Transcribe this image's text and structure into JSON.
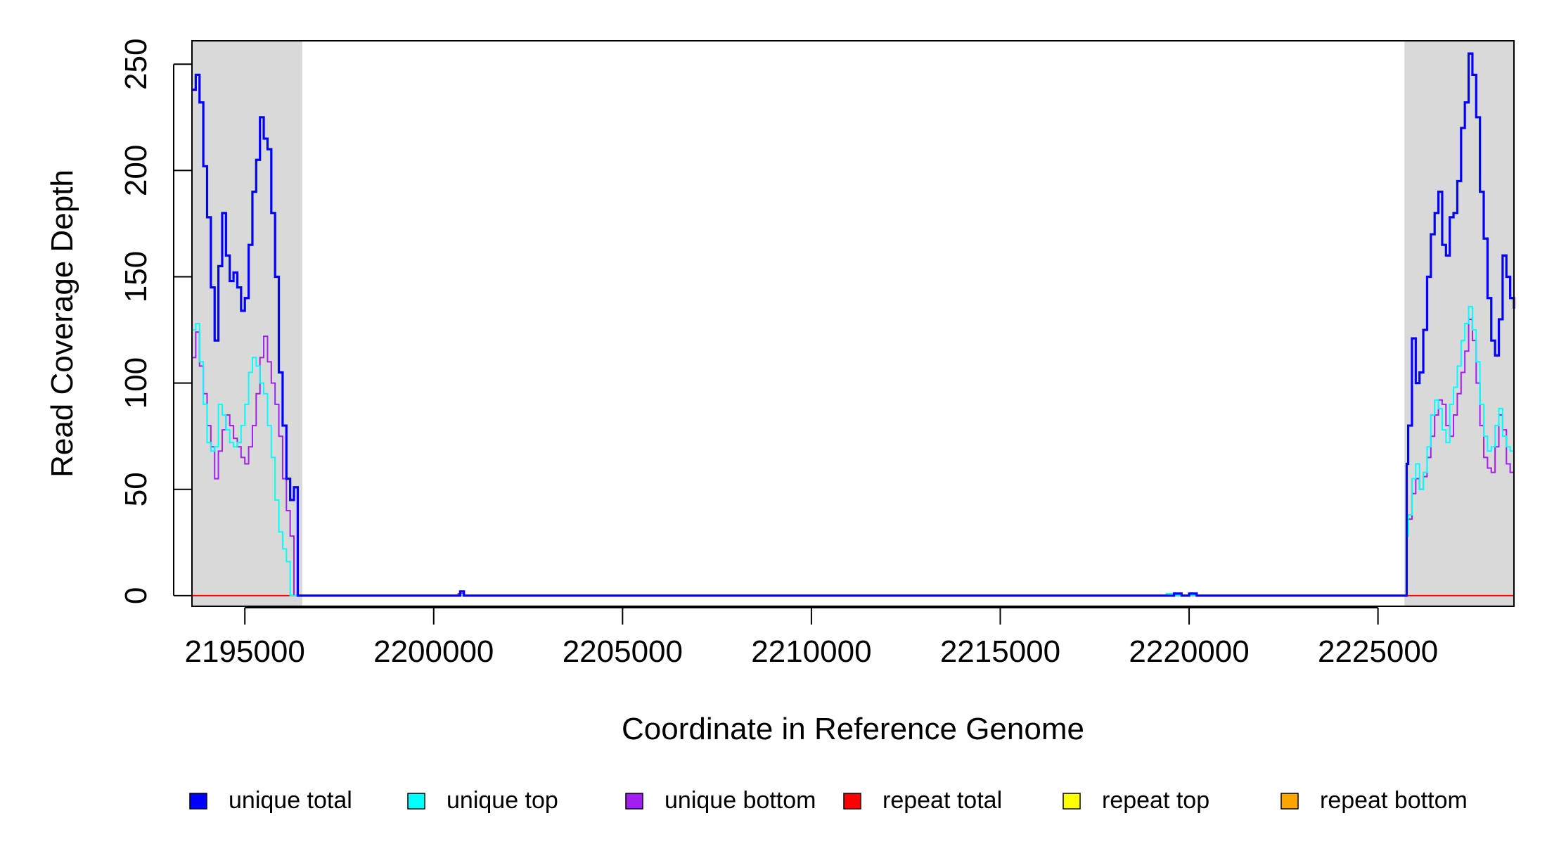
{
  "chart_data": {
    "type": "line",
    "title": "",
    "xlabel": "Coordinate in Reference Genome",
    "ylabel": "Read Coverage Depth",
    "xlim": [
      2193600,
      2228600
    ],
    "ylim": [
      -5,
      261
    ],
    "x_ticks": [
      2195000,
      2200000,
      2205000,
      2210000,
      2215000,
      2220000,
      2225000
    ],
    "x_tick_labels": [
      "2195000",
      "2200000",
      "2205000",
      "2210000",
      "2215000",
      "2220000",
      "2225000"
    ],
    "y_ticks": [
      0,
      50,
      100,
      150,
      200,
      250
    ],
    "y_tick_labels": [
      "0",
      "50",
      "100",
      "150",
      "200",
      "250"
    ],
    "shaded_regions": [
      {
        "x0": 2193600,
        "x1": 2196520,
        "color": "#d9d9d9"
      },
      {
        "x0": 2225700,
        "x1": 2228600,
        "color": "#d9d9d9"
      }
    ],
    "legend_position": "bottom",
    "legend": [
      {
        "label": "unique total",
        "color": "#0000ff"
      },
      {
        "label": "unique top",
        "color": "#00ffff"
      },
      {
        "label": "unique bottom",
        "color": "#a020f0"
      },
      {
        "label": "repeat total",
        "color": "#ff0000"
      },
      {
        "label": "repeat top",
        "color": "#ffff00"
      },
      {
        "label": "repeat bottom",
        "color": "#ffa500"
      }
    ],
    "series": [
      {
        "name": "unique total",
        "color": "#0000ff",
        "x": [
          2193600,
          2193700,
          2193800,
          2193900,
          2194000,
          2194100,
          2194200,
          2194300,
          2194400,
          2194500,
          2194600,
          2194700,
          2194800,
          2194900,
          2195000,
          2195100,
          2195200,
          2195300,
          2195400,
          2195500,
          2195600,
          2195700,
          2195800,
          2195900,
          2196000,
          2196100,
          2196200,
          2196300,
          2196400,
          2196520,
          2200650,
          2200700,
          2200800,
          2219400,
          2219600,
          2219800,
          2220000,
          2220200,
          2225700,
          2225760,
          2225800,
          2225900,
          2226000,
          2226100,
          2226200,
          2226300,
          2226400,
          2226500,
          2226600,
          2226700,
          2226800,
          2226900,
          2227000,
          2227100,
          2227200,
          2227300,
          2227400,
          2227500,
          2227600,
          2227700,
          2227800,
          2227900,
          2228000,
          2228100,
          2228200,
          2228300,
          2228400,
          2228500,
          2228600
        ],
        "y": [
          238,
          245,
          232,
          202,
          178,
          145,
          120,
          155,
          180,
          160,
          148,
          152,
          145,
          134,
          140,
          165,
          190,
          205,
          225,
          215,
          210,
          180,
          150,
          105,
          80,
          55,
          45,
          51,
          0,
          0,
          0,
          2,
          0,
          0,
          1,
          0,
          1,
          0,
          0,
          62,
          80,
          121,
          100,
          105,
          125,
          150,
          170,
          180,
          190,
          165,
          160,
          178,
          180,
          195,
          220,
          232,
          255,
          245,
          225,
          190,
          168,
          140,
          120,
          113,
          130,
          160,
          150,
          140,
          135
        ],
        "width": 3.2
      },
      {
        "name": "unique top",
        "color": "#00ffff",
        "x": [
          2193600,
          2193700,
          2193800,
          2193900,
          2194000,
          2194100,
          2194200,
          2194300,
          2194400,
          2194500,
          2194600,
          2194700,
          2194800,
          2194900,
          2195000,
          2195100,
          2195200,
          2195300,
          2195400,
          2195500,
          2195600,
          2195700,
          2195800,
          2195900,
          2196000,
          2196100,
          2196200,
          2196300,
          2196400,
          2196520,
          2219400,
          2219600,
          2225700,
          2225760,
          2225800,
          2225900,
          2226000,
          2226100,
          2226200,
          2226300,
          2226400,
          2226500,
          2226600,
          2226700,
          2226800,
          2226900,
          2227000,
          2227100,
          2227200,
          2227300,
          2227400,
          2227500,
          2227600,
          2227700,
          2227800,
          2227900,
          2228000,
          2228100,
          2228200,
          2228300,
          2228400,
          2228500,
          2228600
        ],
        "y": [
          125,
          128,
          110,
          90,
          72,
          68,
          70,
          90,
          85,
          78,
          72,
          70,
          72,
          80,
          90,
          105,
          112,
          108,
          100,
          95,
          80,
          65,
          45,
          30,
          22,
          16,
          0,
          0,
          0,
          0,
          1,
          0,
          0,
          28,
          38,
          55,
          62,
          50,
          58,
          70,
          85,
          92,
          88,
          78,
          72,
          90,
          98,
          108,
          120,
          128,
          136,
          125,
          110,
          90,
          75,
          68,
          70,
          80,
          88,
          75,
          70,
          68,
          65
        ],
        "width": 2
      },
      {
        "name": "unique bottom",
        "color": "#a020f0",
        "x": [
          2193600,
          2193700,
          2193800,
          2193900,
          2194000,
          2194100,
          2194200,
          2194300,
          2194400,
          2194500,
          2194600,
          2194700,
          2194800,
          2194900,
          2195000,
          2195100,
          2195200,
          2195300,
          2195400,
          2195500,
          2195600,
          2195700,
          2195800,
          2195900,
          2196000,
          2196100,
          2196200,
          2196300,
          2196400,
          2196520,
          2200650,
          2200800,
          2225700,
          2225760,
          2225800,
          2225900,
          2226000,
          2226100,
          2226200,
          2226300,
          2226400,
          2226500,
          2226600,
          2226700,
          2226800,
          2226900,
          2227000,
          2227100,
          2227200,
          2227300,
          2227400,
          2227500,
          2227600,
          2227700,
          2227800,
          2227900,
          2228000,
          2228100,
          2228200,
          2228300,
          2228400,
          2228500,
          2228600
        ],
        "y": [
          112,
          124,
          108,
          95,
          80,
          70,
          55,
          68,
          78,
          85,
          80,
          74,
          70,
          65,
          62,
          70,
          80,
          95,
          112,
          122,
          110,
          100,
          90,
          75,
          55,
          40,
          28,
          0,
          0,
          0,
          1,
          0,
          0,
          28,
          36,
          48,
          55,
          50,
          56,
          65,
          75,
          85,
          92,
          90,
          80,
          75,
          85,
          95,
          105,
          115,
          130,
          120,
          100,
          80,
          65,
          60,
          58,
          70,
          85,
          78,
          62,
          58,
          60
        ],
        "width": 2
      },
      {
        "name": "repeat total",
        "color": "#ff0000",
        "x": [
          2193600,
          2228600
        ],
        "y": [
          0,
          0
        ],
        "width": 2
      },
      {
        "name": "repeat top",
        "color": "#ffff00",
        "x": [
          2193600,
          2228600
        ],
        "y": [
          0,
          0
        ],
        "width": 2
      },
      {
        "name": "repeat bottom",
        "color": "#ffa500",
        "x": [
          2193600,
          2228600
        ],
        "y": [
          0,
          0
        ],
        "width": 2
      }
    ]
  }
}
